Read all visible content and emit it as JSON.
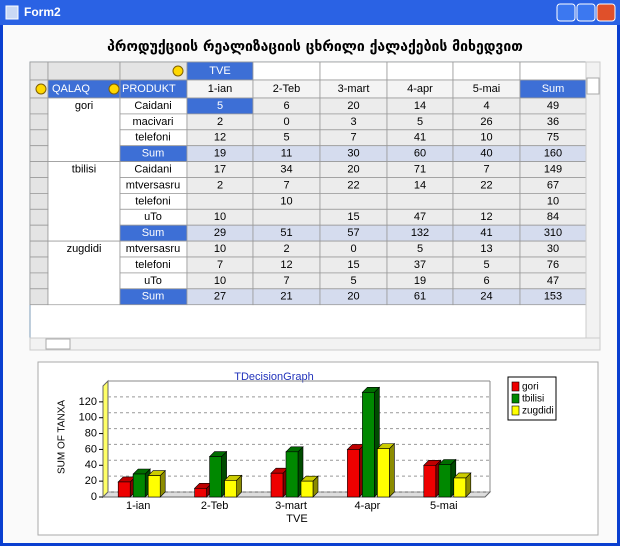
{
  "window": {
    "title": "Form2"
  },
  "heading": "პროდუქციის რეალიზაციის ცხრილი ქალაქების მიხედვით",
  "grid": {
    "column_field": "TVE",
    "header": [
      "QALAQ",
      "PRODUKT",
      "1-ian",
      "2-Teb",
      "3-mart",
      "4-apr",
      "5-mai",
      "Sum"
    ],
    "groups": [
      {
        "city": "gori",
        "rows": [
          {
            "product": "Caidani",
            "cells": [
              5,
              6,
              20,
              14,
              4,
              49
            ]
          },
          {
            "product": "macivari",
            "cells": [
              2,
              0,
              3,
              5,
              26,
              36
            ]
          },
          {
            "product": "telefoni",
            "cells": [
              12,
              5,
              7,
              41,
              10,
              75
            ]
          },
          {
            "product": "Sum",
            "cells": [
              19,
              11,
              30,
              60,
              40,
              160
            ]
          }
        ]
      },
      {
        "city": "tbilisi",
        "rows": [
          {
            "product": "Caidani",
            "cells": [
              17,
              34,
              20,
              71,
              7,
              149
            ]
          },
          {
            "product": "mtversasru",
            "cells": [
              2,
              7,
              22,
              14,
              22,
              67
            ]
          },
          {
            "product": "telefoni",
            "cells": [
              null,
              10,
              null,
              null,
              null,
              10
            ]
          },
          {
            "product": "uTo",
            "cells": [
              10,
              null,
              15,
              47,
              12,
              84
            ]
          },
          {
            "product": "Sum",
            "cells": [
              29,
              51,
              57,
              132,
              41,
              310
            ]
          }
        ]
      },
      {
        "city": "zugdidi",
        "rows": [
          {
            "product": "mtversasru",
            "cells": [
              10,
              2,
              0,
              5,
              13,
              30
            ]
          },
          {
            "product": "telefoni",
            "cells": [
              7,
              12,
              15,
              37,
              5,
              76
            ]
          },
          {
            "product": "uTo",
            "cells": [
              10,
              7,
              5,
              19,
              6,
              47
            ]
          },
          {
            "product": "Sum",
            "cells": [
              27,
              21,
              20,
              61,
              24,
              153
            ]
          }
        ]
      }
    ]
  },
  "chart_data": {
    "type": "bar",
    "title": "TDecisionGraph",
    "y_label": "SUM OF TANXA",
    "x_label": "TVE",
    "categories": [
      "1-ian",
      "2-Teb",
      "3-mart",
      "4-apr",
      "5-mai"
    ],
    "series": [
      {
        "name": "gori",
        "color": "#ee0000",
        "values": [
          19,
          11,
          30,
          60,
          40
        ]
      },
      {
        "name": "tbilisi",
        "color": "#008800",
        "values": [
          29,
          51,
          57,
          132,
          41
        ]
      },
      {
        "name": "zugdidi",
        "color": "#ffff00",
        "values": [
          27,
          21,
          20,
          61,
          24
        ]
      }
    ],
    "ylim": [
      0,
      140
    ],
    "yticks": [
      0,
      20,
      40,
      60,
      80,
      100,
      120
    ],
    "grid": true,
    "legend": "right"
  }
}
